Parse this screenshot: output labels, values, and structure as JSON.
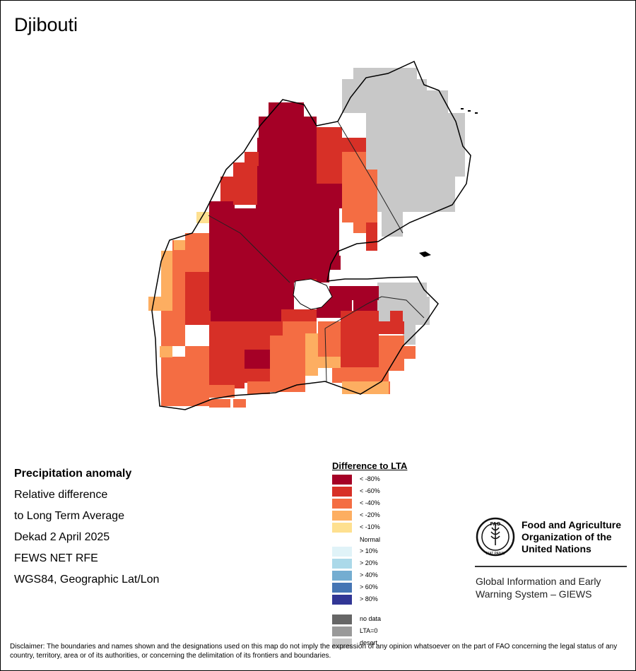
{
  "title": "Djibouti",
  "info": {
    "heading": "Precipitation anomaly",
    "lines": [
      "Relative difference",
      "to Long Term Average",
      "Dekad 2 April 2025",
      "FEWS NET RFE",
      "WGS84, Geographic Lat/Lon"
    ]
  },
  "legend": {
    "title": "Difference to LTA",
    "items": [
      {
        "label": "< -80%",
        "color": "#a50026"
      },
      {
        "label": "< -60%",
        "color": "#d73027"
      },
      {
        "label": "< -40%",
        "color": "#f46d43"
      },
      {
        "label": "< -20%",
        "color": "#fdae61"
      },
      {
        "label": "< -10%",
        "color": "#fee090"
      },
      {
        "label": "Normal",
        "color": "#ffffff"
      },
      {
        "label": "> 10%",
        "color": "#e0f3f8"
      },
      {
        "label": "> 20%",
        "color": "#abd9e9"
      },
      {
        "label": "> 40%",
        "color": "#74add1"
      },
      {
        "label": "> 60%",
        "color": "#4575b4"
      },
      {
        "label": "> 80%",
        "color": "#313695"
      },
      {
        "label": "no data",
        "color": "#666666"
      },
      {
        "label": "LTA=0",
        "color": "#999999"
      },
      {
        "label": "desert",
        "color": "#c8c8c8"
      }
    ]
  },
  "org": {
    "logo_text": "FAO",
    "logo_motto": "FIAT PANIS",
    "name_lines": [
      "Food and Agriculture",
      "Organization of the",
      "United Nations"
    ],
    "system_lines": [
      "Global Information and Early",
      "Warning System – GIEWS"
    ]
  },
  "disclaimer": "Disclaimer: The boundaries and names shown and the designations used on this map do not imply the expression of any opinion whatsoever on the part of FAO concerning the legal status of any country, territory, area or of its authorities, or concerning the delimitation of its frontiers and boundaries.",
  "map": {
    "colors": {
      "desert": "#c8c8c8",
      "m80": "#a50026",
      "m60": "#d73027",
      "m40": "#f46d43",
      "m20": "#fdae61",
      "m10": "#fee090"
    }
  }
}
